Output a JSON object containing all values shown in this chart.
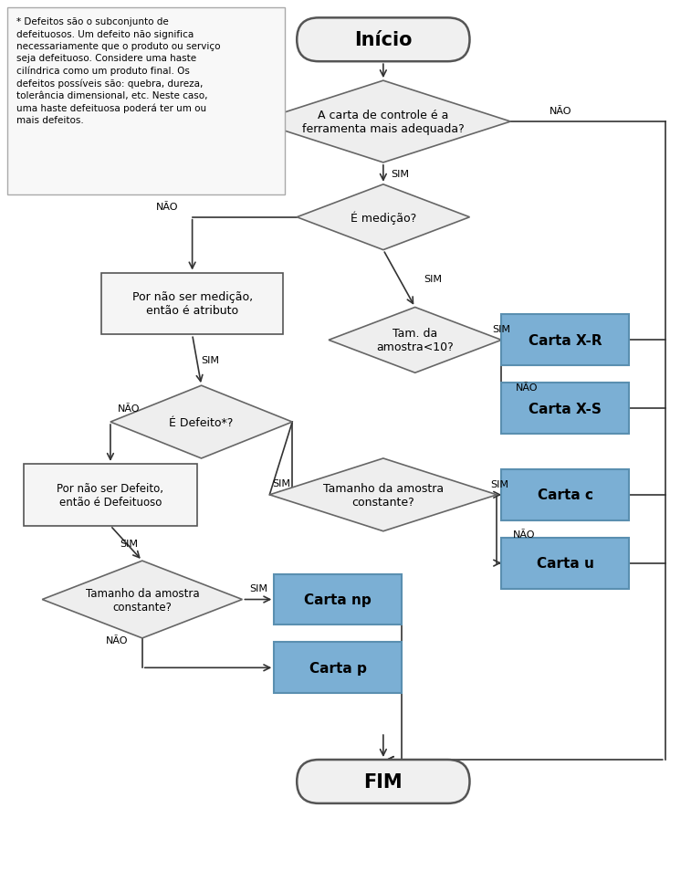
{
  "title": "Início",
  "end_label": "FIM",
  "note_text": "* Defeitos são o subconjunto de\ndefeituosos. Um defeito não significa\nnecessariamente que o produto ou serviço\nseja defeituoso. Considere uma haste\ncilíndrica como um produto final. Os\ndefeitos possíveis são: quebra, dureza,\ntolerância dimensional, etc. Neste caso,\numa haste defeituosa poderá ter um ou\nmais defeitos.",
  "bg_color": "#ffffff",
  "diamond_fill": "#eeeeee",
  "diamond_edge": "#666666",
  "rect_fill": "#f5f5f5",
  "rect_edge": "#555555",
  "card_fill": "#7bafd4",
  "card_edge": "#5a8fb0",
  "terminal_fill": "#f0f0f0",
  "terminal_edge": "#555555",
  "arrow_color": "#333333",
  "text_color": "#000000",
  "note_fill": "#f8f8f8",
  "note_edge": "#aaaaaa"
}
